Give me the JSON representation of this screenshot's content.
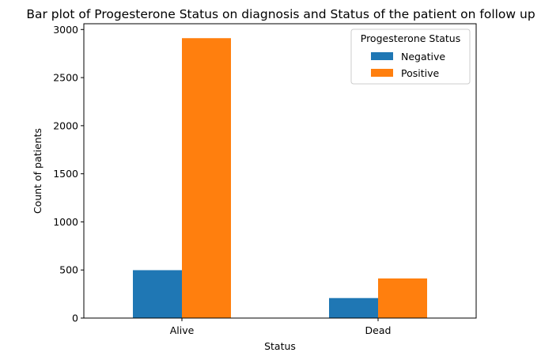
{
  "chart_data": {
    "type": "bar",
    "title": "Bar plot of Progesterone Status on diagnosis and Status of the patient on follow up",
    "xlabel": "Status",
    "ylabel": "Count of patients",
    "categories": [
      "Alive",
      "Dead"
    ],
    "series": [
      {
        "name": "Negative",
        "values": [
          498,
          208
        ],
        "color": "#1f77b4"
      },
      {
        "name": "Positive",
        "values": [
          2910,
          412
        ],
        "color": "#ff7f0e"
      }
    ],
    "ylim": [
      0,
      3060
    ],
    "yticks": [
      0,
      500,
      1000,
      1500,
      2000,
      2500,
      3000
    ],
    "grid": false,
    "legend": {
      "title": "Progesterone Status",
      "position": "top-right"
    }
  }
}
